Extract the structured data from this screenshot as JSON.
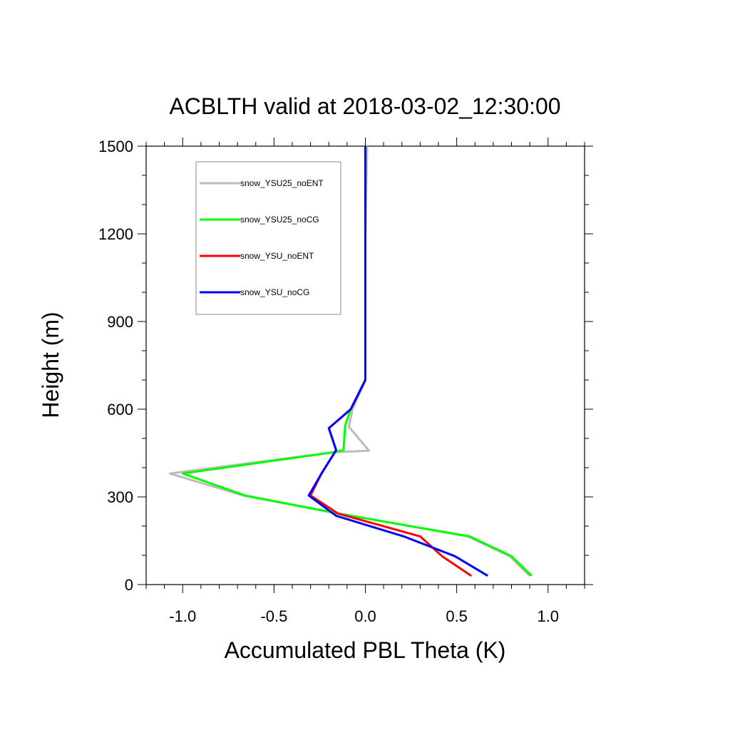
{
  "chart_data": {
    "type": "line",
    "title": "ACBLTH valid at 2018-03-02_12:30:00",
    "xlabel": "Accumulated PBL Theta (K)",
    "ylabel": "Height (m)",
    "xlim": [
      -1.2,
      1.2
    ],
    "ylim": [
      0,
      1500
    ],
    "x_ticks": [
      -1.0,
      -0.5,
      0.0,
      0.5,
      1.0
    ],
    "x_tick_labels": [
      "-1.0",
      "-0.5",
      "0.0",
      "0.5",
      "1.0"
    ],
    "y_ticks": [
      0,
      300,
      600,
      900,
      1200,
      1500
    ],
    "y_tick_labels": [
      "0",
      "300",
      "600",
      "900",
      "1200",
      "1500"
    ],
    "grid": false,
    "legend_position": "top-left",
    "series": [
      {
        "name": "snow_YSU25_noENT",
        "color": "#bbbbbb",
        "points": [
          [
            0.9,
            30
          ],
          [
            0.79,
            97
          ],
          [
            0.56,
            165
          ],
          [
            -0.14,
            243
          ],
          [
            -0.67,
            305
          ],
          [
            -1.07,
            380
          ],
          [
            -0.17,
            453
          ],
          [
            0.02,
            458
          ],
          [
            -0.09,
            540
          ],
          [
            -0.07,
            600
          ],
          [
            0.0,
            700
          ],
          [
            0.0,
            900
          ],
          [
            0.0,
            1200
          ],
          [
            0.01,
            1500
          ]
        ]
      },
      {
        "name": "snow_YSU25_noCG",
        "color": "#00ff00",
        "points": [
          [
            0.91,
            30
          ],
          [
            0.8,
            97
          ],
          [
            0.57,
            165
          ],
          [
            -0.15,
            243
          ],
          [
            -0.66,
            305
          ],
          [
            -1.0,
            380
          ],
          [
            -0.17,
            453
          ],
          [
            -0.12,
            460
          ],
          [
            -0.11,
            545
          ],
          [
            -0.08,
            600
          ],
          [
            0.0,
            700
          ],
          [
            0.0,
            900
          ],
          [
            0.0,
            1200
          ],
          [
            0.0,
            1500
          ]
        ]
      },
      {
        "name": "snow_YSU_noENT",
        "color": "#ff0000",
        "points": [
          [
            0.58,
            30
          ],
          [
            0.42,
            97
          ],
          [
            0.3,
            165
          ],
          [
            -0.15,
            243
          ],
          [
            -0.3,
            305
          ],
          [
            -0.24,
            380
          ],
          [
            -0.16,
            460
          ],
          [
            -0.2,
            535
          ],
          [
            -0.08,
            600
          ],
          [
            0.0,
            700
          ],
          [
            0.0,
            900
          ],
          [
            0.0,
            1200
          ],
          [
            0.0,
            1500
          ]
        ]
      },
      {
        "name": "snow_YSU_noCG",
        "color": "#0000ff",
        "points": [
          [
            0.67,
            30
          ],
          [
            0.49,
            97
          ],
          [
            0.21,
            165
          ],
          [
            -0.16,
            235
          ],
          [
            -0.31,
            305
          ],
          [
            -0.24,
            380
          ],
          [
            -0.16,
            460
          ],
          [
            -0.2,
            535
          ],
          [
            -0.08,
            600
          ],
          [
            0.0,
            700
          ],
          [
            0.0,
            900
          ],
          [
            0.0,
            1200
          ],
          [
            0.0,
            1500
          ]
        ]
      }
    ]
  }
}
